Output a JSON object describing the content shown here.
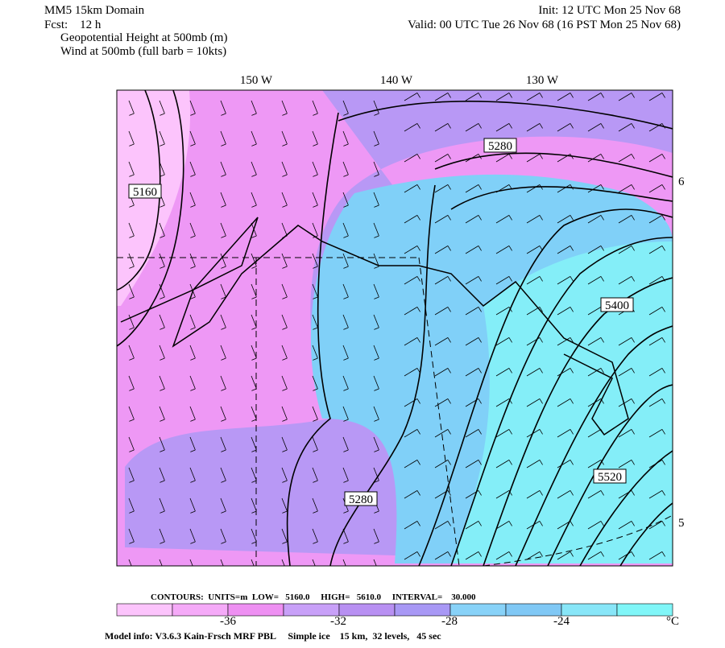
{
  "header": {
    "domain": "MM5 15km Domain",
    "init": "Init: 12 UTC Mon 25 Nov 68",
    "forecast": "Fcst:    12 h",
    "valid": "Valid: 00 UTC Tue 26 Nov 68 (16 PST Mon 25 Nov 68)",
    "field1": "Geopotential Height at 500mb (m)",
    "field2": "Wind at 500mb (full barb = 10kts)"
  },
  "map": {
    "longitude_labels": [
      "150 W",
      "140 W",
      "130 W"
    ],
    "latitude_labels": [
      "6",
      "5"
    ],
    "contour_labels": [
      "5160",
      "5280",
      "5280",
      "5400",
      "5520"
    ]
  },
  "contour_info": "CONTOURS:  UNITS=m  LOW=   5160.0     HIGH=   5610.0     INTERVAL=    30.000",
  "colorbar": {
    "labels": [
      "-36",
      "-32",
      "-28",
      "-24"
    ],
    "unit": "°C"
  },
  "model_info": "Model info: V3.6.3 Kain-Frsch MRF PBL     Simple ice    15 km,  32 levels,   45 sec"
}
